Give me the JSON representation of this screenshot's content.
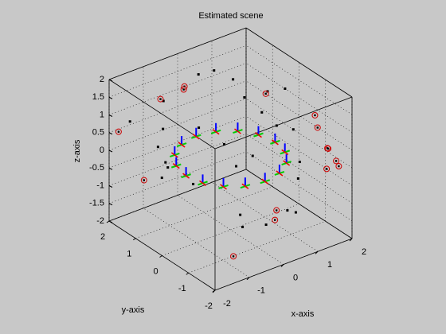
{
  "chart_data": {
    "type": "scatter3d",
    "title": "Estimated scene",
    "xlabel": "x-axis",
    "ylabel": "y-axis",
    "zlabel": "z-axis",
    "xlim": [
      -2,
      2
    ],
    "ylim": [
      -2,
      2
    ],
    "zlim": [
      -2,
      2
    ],
    "xticks": [
      -2,
      -1,
      0,
      1,
      2
    ],
    "yticks": [
      -2,
      -1,
      0,
      1,
      2
    ],
    "zticks": [
      -2,
      -1.5,
      -1,
      -0.5,
      0,
      0.5,
      1,
      1.5,
      2
    ],
    "grid": true,
    "series": [
      {
        "marker": "dot",
        "color": "#000000",
        "x": [
          -1.2,
          -0.8,
          0.3,
          0.6,
          1.0,
          1.3,
          1.5,
          1.6,
          1.4,
          1.2,
          0.5,
          -0.2,
          -0.8,
          -1.4,
          -1.6,
          -1.5,
          0.2,
          0.8,
          -0.3,
          1.7,
          -1.9,
          0.9,
          -1.0,
          1.1,
          0.0,
          -0.5,
          1.9,
          -1.7
        ],
        "y": [
          1.0,
          1.5,
          1.6,
          1.4,
          1.2,
          0.5,
          0.2,
          -0.3,
          -0.8,
          -1.0,
          -1.5,
          -1.6,
          -1.4,
          -0.4,
          0.3,
          0.8,
          0.5,
          0.2,
          -0.6,
          0.8,
          0.0,
          -1.3,
          1.3,
          0.9,
          1.2,
          -1.1,
          0.4,
          1.6
        ],
        "z": [
          0.8,
          1.2,
          1.5,
          1.6,
          1.3,
          0.6,
          0.3,
          0.4,
          -0.2,
          -0.5,
          -0.9,
          -1.0,
          -0.6,
          0.0,
          0.2,
          0.5,
          0.1,
          -0.3,
          0.2,
          0.9,
          0.6,
          -1.2,
          -0.8,
          0.9,
          0.3,
          -1.2,
          1.1,
          0.9
        ]
      },
      {
        "marker": "circled",
        "color": "#cc0000",
        "x": [
          -1.8,
          -1.6,
          -0.5,
          0.2,
          0.1,
          -1.0,
          0.6,
          0.8,
          1.8,
          1.9,
          2.0,
          2.0,
          1.8,
          2.0,
          2.0,
          2.0
        ],
        "y": [
          1.9,
          1.2,
          2.0,
          2.0,
          1.9,
          -1.4,
          -0.9,
          -0.7,
          1.0,
          -1.2,
          -0.6,
          -0.7,
          -1.3,
          -1.1,
          -1.4,
          -1.5
        ],
        "z": [
          0.5,
          -0.6,
          0.9,
          1.0,
          1.0,
          -1.7,
          -1.5,
          -1.4,
          0.7,
          0.2,
          0.8,
          0.5,
          -0.3,
          0.1,
          -0.1,
          -0.2
        ]
      },
      {
        "marker": "camera",
        "color": "#0000ff",
        "x": [
          1.3,
          1.2,
          0.92,
          0.5,
          0,
          -0.5,
          -0.92,
          -1.2,
          -1.3,
          -1.2,
          -0.92,
          -0.5,
          0,
          0.5,
          0.92,
          1.2
        ],
        "y": [
          0,
          0.5,
          0.92,
          1.2,
          1.3,
          1.2,
          0.92,
          0.5,
          0,
          -0.5,
          -0.92,
          -1.2,
          -1.3,
          -1.2,
          -0.92,
          -0.5
        ],
        "z": [
          0,
          0,
          0,
          0,
          0,
          0,
          0,
          0,
          0,
          0,
          0,
          0,
          0,
          0,
          0,
          0
        ]
      }
    ]
  }
}
